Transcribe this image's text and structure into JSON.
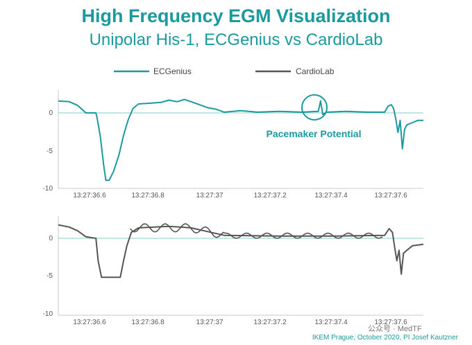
{
  "chart_data": {
    "type": "line",
    "title": "High Frequency EGM Visualization",
    "subtitle": "Unipolar His-1, ECGenius vs CardioLab",
    "legend": [
      "ECGenius",
      "CardioLab"
    ],
    "legend_placement": "top",
    "colors": {
      "ECGenius": "#1a9a9e",
      "CardioLab": "#555555",
      "axis": "#999999"
    },
    "grid": false,
    "x_tick_labels": [
      "13:27:36.6",
      "13:27:36.8",
      "13:27:37",
      "13:27:37.2",
      "13:27:37.4",
      "13:27:37.6"
    ],
    "panels": [
      {
        "series": "ECGenius",
        "ylim": [
          -10,
          3
        ],
        "y_tick_labels": [
          "0",
          "-5",
          "-10"
        ],
        "annotation": "Pacemaker Potential",
        "points": [
          [
            0.0,
            1.6
          ],
          [
            0.02,
            1.5
          ],
          [
            0.035,
            1.0
          ],
          [
            0.05,
            0.0
          ],
          [
            0.068,
            0.0
          ],
          [
            0.07,
            -0.6
          ],
          [
            0.076,
            -3.2
          ],
          [
            0.082,
            -7.0
          ],
          [
            0.086,
            -9.0
          ],
          [
            0.092,
            -9.0
          ],
          [
            0.1,
            -7.8
          ],
          [
            0.11,
            -5.5
          ],
          [
            0.118,
            -3.0
          ],
          [
            0.126,
            -1.0
          ],
          [
            0.135,
            0.6
          ],
          [
            0.145,
            1.2
          ],
          [
            0.165,
            1.3
          ],
          [
            0.185,
            1.4
          ],
          [
            0.2,
            1.7
          ],
          [
            0.215,
            1.5
          ],
          [
            0.228,
            1.8
          ],
          [
            0.24,
            1.5
          ],
          [
            0.255,
            1.1
          ],
          [
            0.27,
            0.7
          ],
          [
            0.285,
            0.5
          ],
          [
            0.3,
            0.1
          ],
          [
            0.33,
            0.3
          ],
          [
            0.36,
            0.1
          ],
          [
            0.4,
            0.2
          ],
          [
            0.44,
            0.1
          ],
          [
            0.47,
            0.2
          ],
          [
            0.474,
            1.6
          ],
          [
            0.478,
            -0.2
          ],
          [
            0.485,
            0.1
          ],
          [
            0.52,
            0.2
          ],
          [
            0.56,
            0.1
          ],
          [
            0.59,
            0.1
          ],
          [
            0.596,
            0.9
          ],
          [
            0.602,
            1.1
          ],
          [
            0.606,
            0.6
          ],
          [
            0.61,
            -0.8
          ],
          [
            0.614,
            -2.6
          ],
          [
            0.618,
            -1.0
          ],
          [
            0.622,
            -4.8
          ],
          [
            0.626,
            -2.2
          ],
          [
            0.63,
            -1.6
          ],
          [
            0.64,
            -1.3
          ],
          [
            0.65,
            -1.0
          ],
          [
            0.66,
            -1.0
          ]
        ]
      },
      {
        "series": "CardioLab",
        "ylim": [
          -10,
          3
        ],
        "y_tick_labels": [
          "0",
          "-5",
          "-10"
        ],
        "points": [
          [
            0.0,
            1.8
          ],
          [
            0.02,
            1.5
          ],
          [
            0.035,
            1.0
          ],
          [
            0.05,
            0.2
          ],
          [
            0.068,
            0.0
          ],
          [
            0.072,
            -3.0
          ],
          [
            0.078,
            -5.2
          ],
          [
            0.112,
            -5.2
          ],
          [
            0.118,
            -3.0
          ],
          [
            0.124,
            -1.0
          ],
          [
            0.132,
            0.8
          ],
          [
            0.145,
            1.4
          ],
          [
            0.2,
            1.6
          ],
          [
            0.24,
            1.4
          ],
          [
            0.27,
            0.9
          ],
          [
            0.3,
            0.4
          ],
          [
            0.4,
            0.3
          ],
          [
            0.5,
            0.3
          ],
          [
            0.59,
            0.4
          ],
          [
            0.598,
            1.3
          ],
          [
            0.604,
            0.8
          ],
          [
            0.608,
            -1.2
          ],
          [
            0.612,
            -3.0
          ],
          [
            0.616,
            -1.6
          ],
          [
            0.62,
            -4.8
          ],
          [
            0.624,
            -2.0
          ],
          [
            0.63,
            -1.6
          ],
          [
            0.64,
            -1.0
          ],
          [
            0.66,
            -0.8
          ]
        ]
      }
    ]
  },
  "footer": "IKEM Prague, October 2020, PI Josef Kautzner",
  "watermark": "公众号 · MedTF"
}
